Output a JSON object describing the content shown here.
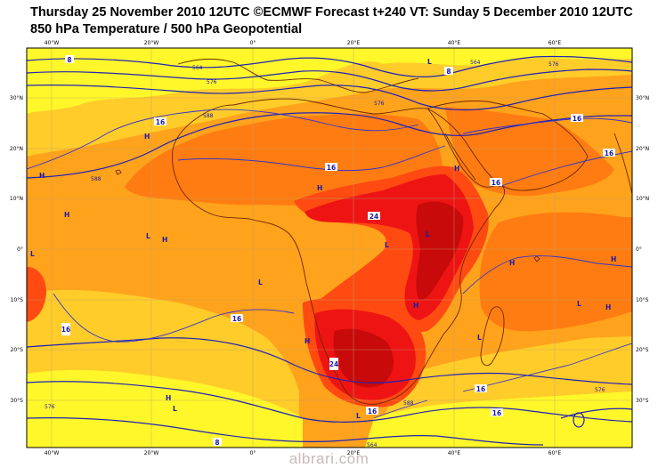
{
  "title": {
    "line1": "Thursday 25 November 2010 12UTC ©ECMWF Forecast t+240 VT: Sunday 5 December 2010 12UTC",
    "line2": "850 hPa Temperature / 500 hPa Geopotential"
  },
  "colors": {
    "yellow": "#fff72a",
    "light_orange": "#ffcc2a",
    "orange": "#ffa21c",
    "dark_orange": "#ff7c12",
    "red_orange": "#ff4a12",
    "red": "#ee1414",
    "dark_red": "#c80a0a",
    "contour": "#1a1aa8",
    "coast": "#6e2800"
  },
  "axes": {
    "lon_ticks": [
      "40°W",
      "20°W",
      "0°",
      "20°E",
      "40°E",
      "60°E"
    ],
    "lat_ticks": [
      "30°N",
      "20°N",
      "10°N",
      "0°",
      "10°S",
      "20°S",
      "30°S"
    ]
  },
  "temperature_labels": [
    "8",
    "16",
    "16",
    "16",
    "16",
    "16",
    "16",
    "16",
    "16",
    "24",
    "24",
    "16",
    "16",
    "8",
    "8"
  ],
  "geopotential_labels": [
    "564",
    "576",
    "588",
    "588",
    "576",
    "564",
    "576",
    "576",
    "588",
    "576",
    "564"
  ],
  "pressure_centers": [
    "H",
    "H",
    "H",
    "H",
    "L",
    "L",
    "H",
    "L",
    "L",
    "H",
    "L",
    "H",
    "H",
    "H",
    "L",
    "H",
    "L",
    "L",
    "L",
    "H",
    "L",
    "H"
  ],
  "watermark": "albrari.com"
}
